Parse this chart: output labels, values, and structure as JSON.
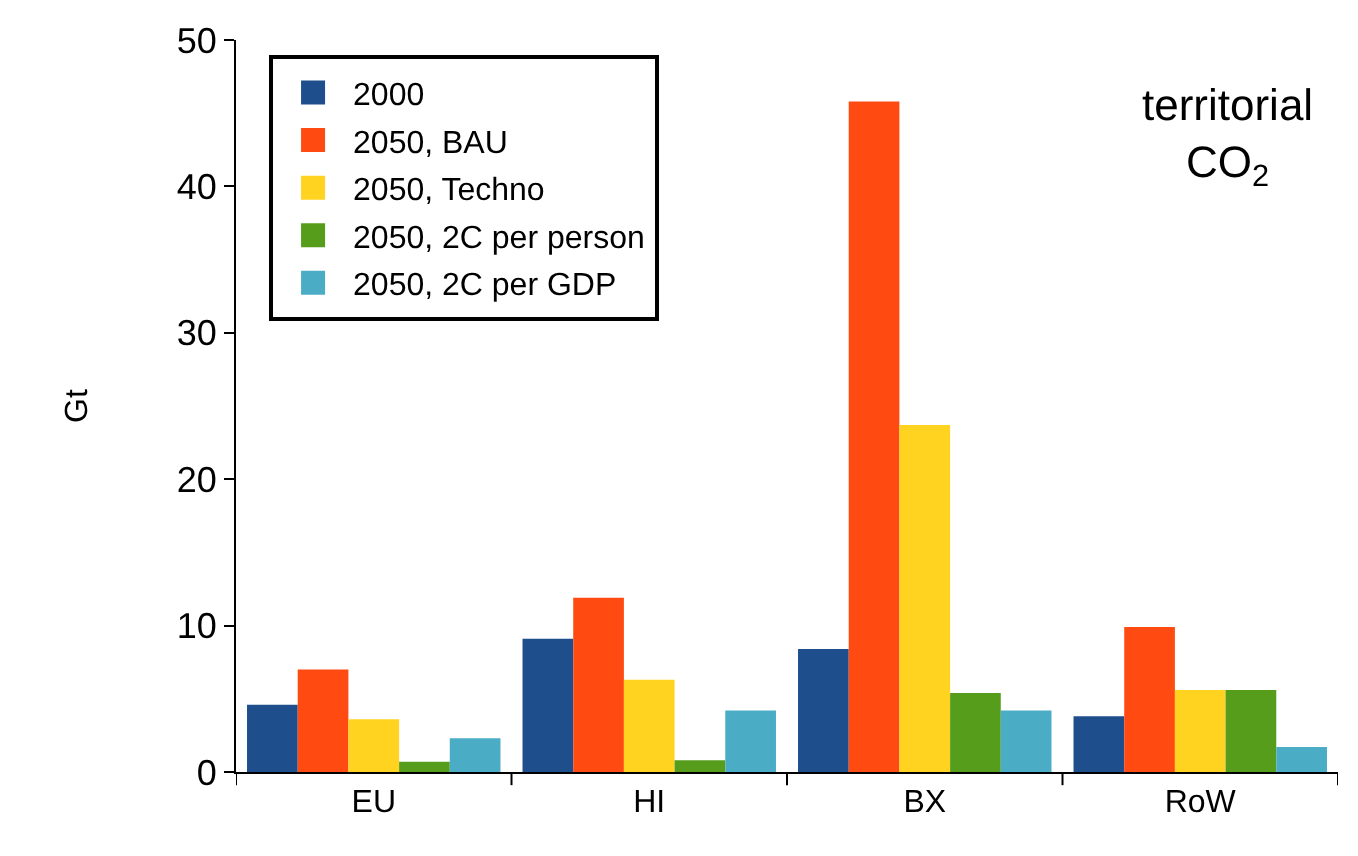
{
  "chart_data": {
    "type": "bar",
    "ylabel": "Gt",
    "categories": [
      "EU",
      "HI",
      "BX",
      "RoW"
    ],
    "series": [
      {
        "name": "2000",
        "color": "#1f4e8c",
        "values": [
          4.6,
          9.1,
          8.4,
          3.8
        ]
      },
      {
        "name": "2050, BAU",
        "color": "#ff4a12",
        "values": [
          7.0,
          11.9,
          45.8,
          9.9
        ]
      },
      {
        "name": "2050, Techno",
        "color": "#ffd320",
        "values": [
          3.6,
          6.3,
          23.7,
          5.6
        ]
      },
      {
        "name": "2050, 2C per person",
        "color": "#579d1c",
        "values": [
          0.7,
          0.8,
          5.4,
          5.6
        ]
      },
      {
        "name": "2050, 2C per GDP",
        "color": "#4bacc6",
        "values": [
          2.3,
          4.2,
          4.2,
          1.7
        ]
      }
    ],
    "ylim": [
      0,
      50
    ],
    "yticks": [
      0,
      10,
      20,
      30,
      40,
      50
    ],
    "annotations": [
      "territorial\nCO$_{2}$"
    ],
    "legend": "top left"
  }
}
